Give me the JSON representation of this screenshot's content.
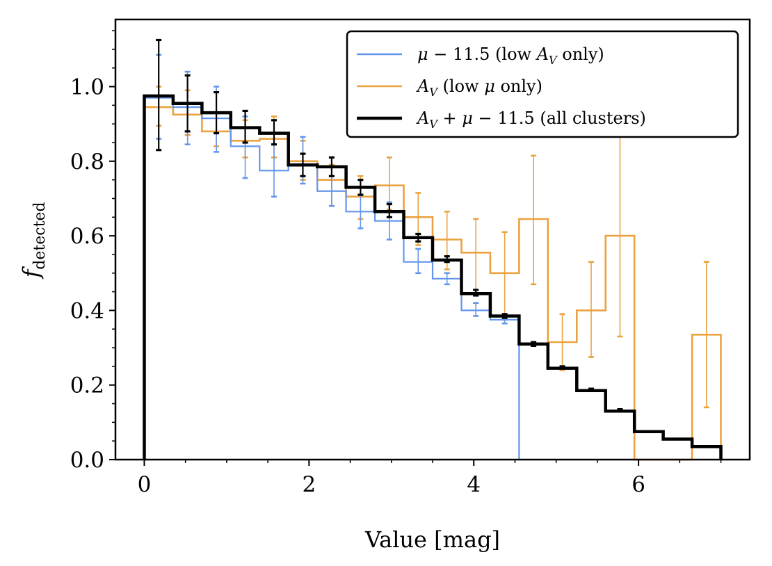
{
  "chart_data": {
    "type": "step",
    "xlabel": "Value [mag]",
    "ylabel_main": "f",
    "ylabel_sub": "detected",
    "xlim": [
      -0.35,
      7.35
    ],
    "ylim": [
      0.0,
      1.18
    ],
    "xticks": [
      0,
      2,
      4,
      6
    ],
    "xtick_labels": [
      "0",
      "2",
      "4",
      "6"
    ],
    "yticks": [
      0.0,
      0.2,
      0.4,
      0.6,
      0.8,
      1.0
    ],
    "ytick_labels": [
      "0.0",
      "0.2",
      "0.4",
      "0.6",
      "0.8",
      "1.0"
    ],
    "legend_position": "top-right",
    "series": [
      {
        "name": "μ − 11.5 (low A_V only)",
        "color": "#6495ED",
        "edges": [
          0,
          0.35,
          0.7,
          1.05,
          1.4,
          1.75,
          2.1,
          2.45,
          2.8,
          3.15,
          3.5,
          3.85,
          4.2,
          4.55
        ],
        "values": [
          0.97,
          0.945,
          0.915,
          0.84,
          0.775,
          0.79,
          0.72,
          0.665,
          0.64,
          0.53,
          0.485,
          0.4,
          0.375
        ],
        "err_x": [
          0.175,
          0.525,
          0.875,
          1.225,
          1.575,
          1.925,
          2.275,
          2.625,
          2.975,
          3.325,
          3.675,
          4.025,
          4.375
        ],
        "err_lo": [
          0.86,
          0.845,
          0.825,
          0.755,
          0.705,
          0.74,
          0.68,
          0.62,
          0.59,
          0.5,
          0.47,
          0.385,
          0.365
        ],
        "err_hi": [
          1.085,
          1.04,
          1.0,
          0.92,
          0.845,
          0.865,
          0.76,
          0.71,
          0.69,
          0.565,
          0.5,
          0.42,
          0.39
        ],
        "drop_to_zero_at": 4.55
      },
      {
        "name": "A_V (low μ only)",
        "color": "#EBA240",
        "edges": [
          0,
          0.35,
          0.7,
          1.05,
          1.4,
          1.75,
          2.1,
          2.45,
          2.8,
          3.15,
          3.5,
          3.85,
          4.2,
          4.55,
          4.9,
          5.25,
          5.6,
          5.95,
          6.3,
          6.65,
          7.0
        ],
        "values": [
          0.945,
          0.925,
          0.88,
          0.855,
          0.86,
          0.8,
          0.75,
          0.705,
          0.735,
          0.65,
          0.59,
          0.555,
          0.5,
          0.645,
          0.315,
          0.4,
          0.6,
          0.0,
          0.0,
          0.335
        ],
        "err_x": [
          0.175,
          0.525,
          0.875,
          1.225,
          1.575,
          1.925,
          2.275,
          2.625,
          2.975,
          3.325,
          3.675,
          4.025,
          4.375,
          4.725,
          5.075,
          5.425,
          5.775,
          6.825
        ],
        "err_lo": [
          0.895,
          0.87,
          0.84,
          0.81,
          0.81,
          0.75,
          0.68,
          0.645,
          0.67,
          0.575,
          0.51,
          0.44,
          0.375,
          0.47,
          0.24,
          0.275,
          0.33,
          0.14
        ],
        "err_hi": [
          1.0,
          0.99,
          0.93,
          0.91,
          0.92,
          0.855,
          0.79,
          0.76,
          0.81,
          0.715,
          0.665,
          0.645,
          0.61,
          0.815,
          0.39,
          0.53,
          0.88,
          0.53
        ]
      },
      {
        "name": "A_V + μ − 11.5 (all clusters)",
        "color": "#000000",
        "edges": [
          0,
          0.35,
          0.7,
          1.05,
          1.4,
          1.75,
          2.1,
          2.45,
          2.8,
          3.15,
          3.5,
          3.85,
          4.2,
          4.55,
          4.9,
          5.25,
          5.6,
          5.95,
          6.3,
          6.65,
          7.0
        ],
        "values": [
          0.975,
          0.955,
          0.93,
          0.89,
          0.875,
          0.79,
          0.785,
          0.73,
          0.665,
          0.595,
          0.535,
          0.445,
          0.385,
          0.31,
          0.245,
          0.185,
          0.13,
          0.075,
          0.055,
          0.035
        ],
        "err_x": [
          0.175,
          0.525,
          0.875,
          1.225,
          1.575,
          1.925,
          2.275,
          2.625,
          2.975,
          3.325,
          3.675,
          4.025,
          4.375,
          4.725,
          5.075,
          5.425,
          5.775
        ],
        "err_lo": [
          0.83,
          0.88,
          0.875,
          0.85,
          0.845,
          0.76,
          0.76,
          0.71,
          0.65,
          0.585,
          0.53,
          0.44,
          0.38,
          0.305,
          0.245,
          0.185,
          0.13
        ],
        "err_hi": [
          1.125,
          1.03,
          0.985,
          0.935,
          0.91,
          0.82,
          0.81,
          0.75,
          0.685,
          0.605,
          0.545,
          0.455,
          0.39,
          0.315,
          0.25,
          0.19,
          0.135
        ]
      }
    ]
  }
}
